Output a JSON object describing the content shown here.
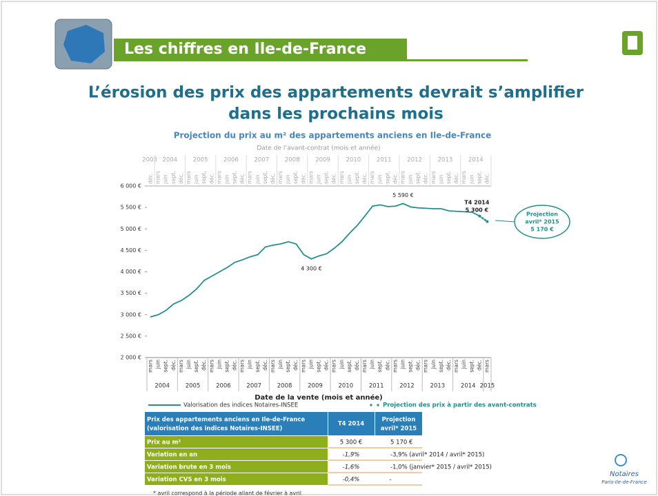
{
  "header": {
    "title": "Les chiffres en Ile-de-France"
  },
  "headline": [
    "L’érosion des prix des appartements devrait s’amplifier",
    "dans les prochains mois"
  ],
  "chart_data": {
    "type": "line",
    "title": "Projection du prix au m² des appartements anciens en Ile-de-France",
    "top_axis_label": "Date de l’avant-contrat (mois et année)",
    "top_years": [
      "2003",
      "2004",
      "2005",
      "2006",
      "2007",
      "2008",
      "2009",
      "2010",
      "2011",
      "2012",
      "2013",
      "2014"
    ],
    "top_categories": [
      "déc.",
      "mars",
      "juin",
      "sept.",
      "déc.",
      "mars",
      "juin",
      "sept.",
      "déc.",
      "mars",
      "juin",
      "sept.",
      "déc.",
      "mars",
      "juin",
      "sept.",
      "déc.",
      "mars",
      "juin",
      "sept.",
      "déc.",
      "mars",
      "juin",
      "sept.",
      "déc.",
      "mars",
      "juin",
      "sept.",
      "déc.",
      "mars",
      "juin",
      "sept.",
      "déc.",
      "mars",
      "juin",
      "sept.",
      "déc.",
      "mars",
      "juin",
      "sept.",
      "déc.",
      "mars",
      "juin",
      "sept.",
      "déc."
    ],
    "x_label": "Date de la vente (mois et année)",
    "years": [
      "2004",
      "2005",
      "2006",
      "2007",
      "2008",
      "2009",
      "2010",
      "2011",
      "2012",
      "2013",
      "2014",
      "2015"
    ],
    "categories": [
      "mars",
      "juin",
      "sept.",
      "déc.",
      "mars",
      "juin",
      "sept.",
      "déc.",
      "mars",
      "juin",
      "sept.",
      "déc.",
      "mars",
      "juin",
      "sept.",
      "déc.",
      "mars",
      "juin",
      "sept.",
      "déc.",
      "mars",
      "juin",
      "sept.",
      "déc.",
      "mars",
      "juin",
      "sept.",
      "déc.",
      "mars",
      "juin",
      "sept.",
      "déc.",
      "mars",
      "juin",
      "sept.",
      "déc.",
      "mars",
      "juin",
      "sept.",
      "déc.",
      "mars",
      "juin",
      "sept.",
      "déc.",
      "mars"
    ],
    "series": [
      {
        "name": "Valorisation des indices Notaires-INSEE",
        "color": "#1f8f8f",
        "values": [
          2950,
          3000,
          3100,
          3250,
          3330,
          3450,
          3600,
          3800,
          3900,
          4000,
          4100,
          4220,
          4280,
          4350,
          4400,
          4580,
          4620,
          4650,
          4700,
          4650,
          4400,
          4300,
          4370,
          4420,
          4550,
          4700,
          4900,
          5080,
          5300,
          5530,
          5560,
          5520,
          5530,
          5590,
          5510,
          5490,
          5480,
          5470,
          5470,
          5420,
          5410,
          5400,
          5390,
          5300,
          null
        ]
      },
      {
        "name": "Projection des prix à partir des avant-contrats",
        "color": "#1f8f8f",
        "values": [
          null,
          null,
          null,
          null,
          null,
          null,
          null,
          null,
          null,
          null,
          null,
          null,
          null,
          null,
          null,
          null,
          null,
          null,
          null,
          null,
          null,
          null,
          null,
          null,
          null,
          null,
          null,
          null,
          null,
          null,
          null,
          null,
          null,
          null,
          null,
          null,
          null,
          null,
          null,
          null,
          null,
          null,
          null,
          5300,
          5170
        ]
      }
    ],
    "ylim": [
      2000,
      6000
    ],
    "yticks": [
      {
        "value": 2000,
        "label": "2 000 €"
      },
      {
        "value": 2500,
        "label": "2 500 €"
      },
      {
        "value": 3000,
        "label": "3 000 €"
      },
      {
        "value": 3500,
        "label": "3 500 €"
      },
      {
        "value": 4000,
        "label": "4 000 €"
      },
      {
        "value": 4500,
        "label": "4 500 €"
      },
      {
        "value": 5000,
        "label": "5 000 €"
      },
      {
        "value": 5500,
        "label": "5 500 €"
      },
      {
        "value": 6000,
        "label": "6 000 €"
      }
    ],
    "annotations": [
      "5 590 €",
      "4 300 €",
      "T4 2014",
      "5 300 €",
      "Projection",
      "avril* 2015",
      "5 170 €"
    ]
  },
  "table": {
    "header": [
      "Prix des appartements anciens en Ile-de-France",
      "(valorisation des indices Notaires-INSEE)",
      "T4 2014",
      "Projection",
      "avril* 2015"
    ],
    "rows": [
      [
        "Prix au m²",
        "5 300 €",
        "5 170 €"
      ],
      [
        "Variation en an",
        "-1,9%",
        "-3,9% (avril* 2014 / avril* 2015)"
      ],
      [
        "Variation brute en 3 mois",
        "-1,6%",
        "-1,0% (janvier* 2015 / avril* 2015)"
      ],
      [
        "Variation CVS en 3 mois",
        "-0,4%",
        "-"
      ]
    ]
  },
  "footnote": "* avril correspond à la période allant de février à avril",
  "logo": [
    "Notaires",
    "Paris-Ile-de-France"
  ]
}
